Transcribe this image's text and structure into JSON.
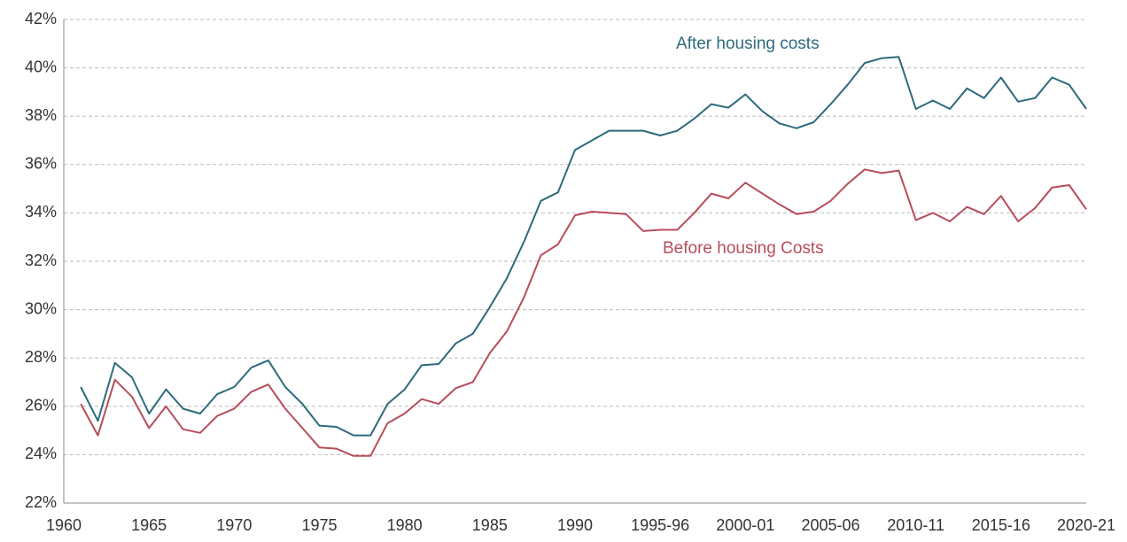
{
  "chart_data": {
    "type": "line",
    "categories": [
      "1960",
      null,
      null,
      null,
      null,
      "1965",
      null,
      null,
      null,
      null,
      "1970",
      null,
      null,
      null,
      null,
      "1975",
      null,
      null,
      null,
      null,
      "1980",
      null,
      null,
      null,
      null,
      "1985",
      null,
      null,
      null,
      null,
      "1990",
      null,
      null,
      null,
      null,
      "1995-96",
      null,
      null,
      null,
      null,
      "2000-01",
      null,
      null,
      null,
      null,
      "2005-06",
      null,
      null,
      null,
      null,
      "2010-11",
      null,
      null,
      null,
      null,
      "2015-16",
      null,
      null,
      null,
      null,
      "2020-21"
    ],
    "series": [
      {
        "name": "After housing costs",
        "color": "#2d6a7d",
        "values": [
          null,
          26.8,
          25.4,
          27.8,
          27.2,
          25.7,
          26.7,
          25.9,
          25.7,
          26.5,
          26.8,
          27.6,
          27.9,
          26.8,
          26.1,
          25.2,
          25.15,
          24.8,
          24.8,
          26.1,
          26.7,
          27.7,
          27.75,
          28.6,
          29.0,
          30.1,
          31.3,
          32.8,
          34.5,
          34.85,
          36.6,
          37.0,
          37.4,
          37.4,
          37.4,
          37.2,
          37.4,
          37.9,
          38.5,
          38.35,
          38.9,
          38.2,
          37.7,
          37.5,
          37.75,
          38.5,
          39.3,
          40.2,
          40.4,
          40.45,
          38.3,
          38.65,
          38.3,
          39.15,
          38.75,
          39.6,
          38.6,
          38.75,
          39.6,
          39.3,
          38.3
        ]
      },
      {
        "name": "Before housing Costs",
        "color": "#b84d5a",
        "values": [
          null,
          26.1,
          24.8,
          27.1,
          26.4,
          25.1,
          26.0,
          25.05,
          24.9,
          25.6,
          25.9,
          26.6,
          26.9,
          25.9,
          25.1,
          24.3,
          24.25,
          23.95,
          23.95,
          25.3,
          25.7,
          26.3,
          26.1,
          26.75,
          27.0,
          28.2,
          29.1,
          30.5,
          32.25,
          32.7,
          33.9,
          34.05,
          34.0,
          33.95,
          33.25,
          33.3,
          33.3,
          34.0,
          34.8,
          34.6,
          35.25,
          34.8,
          34.35,
          33.95,
          34.05,
          34.5,
          35.2,
          35.8,
          35.65,
          35.75,
          33.7,
          34.0,
          33.65,
          34.25,
          33.95,
          34.7,
          33.65,
          34.2,
          35.05,
          35.15,
          34.15
        ]
      }
    ],
    "ylim": [
      22,
      42
    ],
    "yticks": [
      {
        "value": 22,
        "label": "22%"
      },
      {
        "value": 24,
        "label": "24%"
      },
      {
        "value": 26,
        "label": "26%"
      },
      {
        "value": 28,
        "label": "28%"
      },
      {
        "value": 30,
        "label": "30%"
      },
      {
        "value": 32,
        "label": "32%"
      },
      {
        "value": 34,
        "label": "34%"
      },
      {
        "value": 36,
        "label": "36%"
      },
      {
        "value": 38,
        "label": "38%"
      },
      {
        "value": 40,
        "label": "40%"
      },
      {
        "value": 42,
        "label": "42%"
      }
    ],
    "grid": true
  }
}
